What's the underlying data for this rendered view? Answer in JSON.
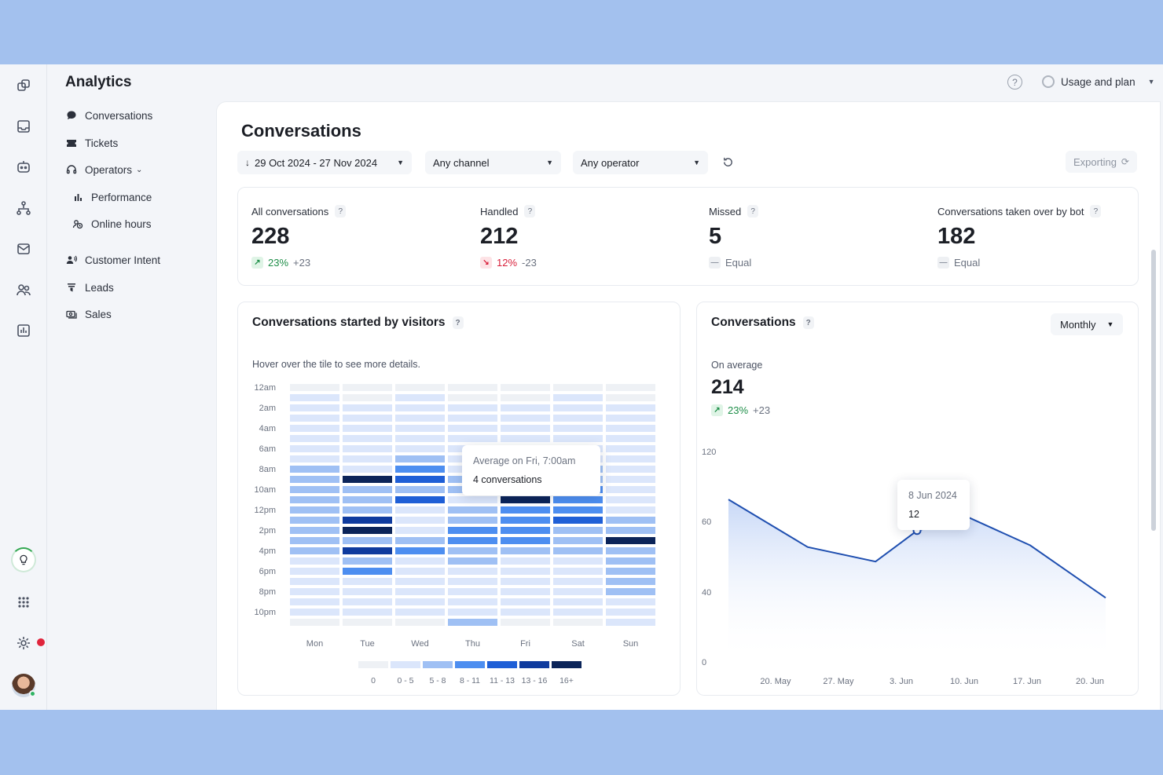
{
  "sidebar": {
    "title": "Analytics",
    "items": [
      {
        "label": "Conversations",
        "icon": "chat-bubble-icon"
      },
      {
        "label": "Tickets",
        "icon": "ticket-icon"
      },
      {
        "label": "Operators",
        "icon": "headset-icon"
      },
      {
        "label": "Performance",
        "icon": "bar-chart-icon"
      },
      {
        "label": "Online hours",
        "icon": "clock-icon"
      },
      {
        "label": "Customer Intent",
        "icon": "people-icon"
      },
      {
        "label": "Leads",
        "icon": "funnel-icon"
      },
      {
        "label": "Sales",
        "icon": "cash-icon"
      }
    ]
  },
  "topbar": {
    "help": "?",
    "usage_label": "Usage and plan"
  },
  "main": {
    "title": "Conversations",
    "filters": {
      "date_range": "29 Oct 2024 - 27 Nov 2024",
      "channel": "Any channel",
      "operator": "Any operator",
      "exporting": "Exporting"
    }
  },
  "stats": [
    {
      "label": "All conversations",
      "value": "228",
      "trend": "up",
      "pct": "23%",
      "abs": "+23"
    },
    {
      "label": "Handled",
      "value": "212",
      "trend": "down",
      "pct": "12%",
      "abs": "-23"
    },
    {
      "label": "Missed",
      "value": "5",
      "trend": "equal",
      "equal_text": "Equal"
    },
    {
      "label": "Conversations taken over by bot",
      "value": "182",
      "trend": "equal",
      "equal_text": "Equal"
    }
  ],
  "heatmap_card": {
    "title": "Conversations started by visitors",
    "hint": "Hover over the tile to see more details.",
    "tooltip": {
      "line1": "Average on Fri, 7:00am",
      "line2": "4 conversations"
    },
    "legend": [
      "0",
      "0 - 5",
      "5 - 8",
      "8 - 11",
      "11 - 13",
      "13 - 16",
      "16+"
    ],
    "legend_colors": [
      "#eef1f5",
      "#dbe6fb",
      "#9fc0f4",
      "#4d8ef0",
      "#1f5fd6",
      "#0f3b9e",
      "#0b2459"
    ]
  },
  "line_card": {
    "title": "Conversations",
    "period": "Monthly",
    "avg_label": "On average",
    "avg_value": "214",
    "avg_pct": "23%",
    "avg_abs": "+23",
    "tooltip": {
      "date": "8 Jun 2024",
      "value": "12"
    }
  },
  "colors": {
    "accent": "#1f5fd6",
    "up": "#1e8e48",
    "down": "#d81f3a",
    "line": "#1f4fb0"
  },
  "chart_data": [
    {
      "type": "heatmap",
      "title": "Conversations started by visitors",
      "x_categories": [
        "Mon",
        "Tue",
        "Wed",
        "Thu",
        "Fri",
        "Sat",
        "Sun"
      ],
      "y_categories": [
        "12am",
        "",
        "2am",
        "",
        "4am",
        "",
        "6am",
        "",
        "8am",
        "",
        "10am",
        "",
        "12pm",
        "",
        "2pm",
        "",
        "4pm",
        "",
        "6pm",
        "",
        "8pm",
        "",
        "10pm",
        ""
      ],
      "levels_by_day": [
        [
          0,
          1,
          1,
          1,
          1,
          1,
          1,
          1,
          2,
          2,
          2,
          2,
          2,
          2,
          2,
          2,
          2,
          1,
          1,
          1,
          1,
          1,
          1,
          0
        ],
        [
          0,
          0,
          1,
          1,
          1,
          1,
          1,
          1,
          1,
          6,
          2,
          2,
          2,
          5,
          6,
          2,
          5,
          2,
          3,
          1,
          1,
          1,
          1,
          0
        ],
        [
          0,
          1,
          1,
          1,
          1,
          1,
          1,
          2,
          3,
          4,
          2,
          4,
          1,
          1,
          1,
          2,
          3,
          1,
          1,
          1,
          1,
          1,
          1,
          0
        ],
        [
          0,
          0,
          1,
          1,
          1,
          1,
          1,
          1,
          1,
          2,
          2,
          1,
          2,
          2,
          3,
          3,
          2,
          2,
          1,
          1,
          1,
          1,
          1,
          2
        ],
        [
          0,
          0,
          1,
          1,
          1,
          1,
          1,
          1,
          2,
          2,
          3,
          6,
          3,
          3,
          3,
          3,
          2,
          1,
          1,
          1,
          1,
          1,
          1,
          0
        ],
        [
          0,
          1,
          1,
          1,
          1,
          1,
          1,
          1,
          2,
          2,
          3,
          3,
          3,
          4,
          2,
          2,
          2,
          1,
          1,
          1,
          1,
          1,
          1,
          0
        ],
        [
          0,
          0,
          1,
          1,
          1,
          1,
          1,
          1,
          1,
          1,
          1,
          1,
          1,
          2,
          2,
          6,
          2,
          2,
          2,
          2,
          2,
          1,
          1,
          1
        ]
      ],
      "legend": [
        "0",
        "0 - 5",
        "5 - 8",
        "8 - 11",
        "11 - 13",
        "13 - 16",
        "16+"
      ]
    },
    {
      "type": "area",
      "title": "Conversations",
      "x": [
        "20. May",
        "27. May",
        "3. Jun",
        "10. Jun",
        "17. Jun",
        "20. Jun"
      ],
      "y_ticks": [
        "0",
        "40",
        "60",
        "120"
      ],
      "y_tick_fracs": [
        0,
        0.333,
        0.667,
        1
      ],
      "points_frac": [
        [
          0.0,
          0.772
        ],
        [
          0.21,
          0.546
        ],
        [
          0.39,
          0.477
        ],
        [
          0.5,
          0.624
        ],
        [
          0.64,
          0.684
        ],
        [
          0.8,
          0.554
        ],
        [
          1.0,
          0.305
        ]
      ],
      "highlight": {
        "label": "8 Jun 2024",
        "value": "12",
        "index": 3
      }
    }
  ]
}
